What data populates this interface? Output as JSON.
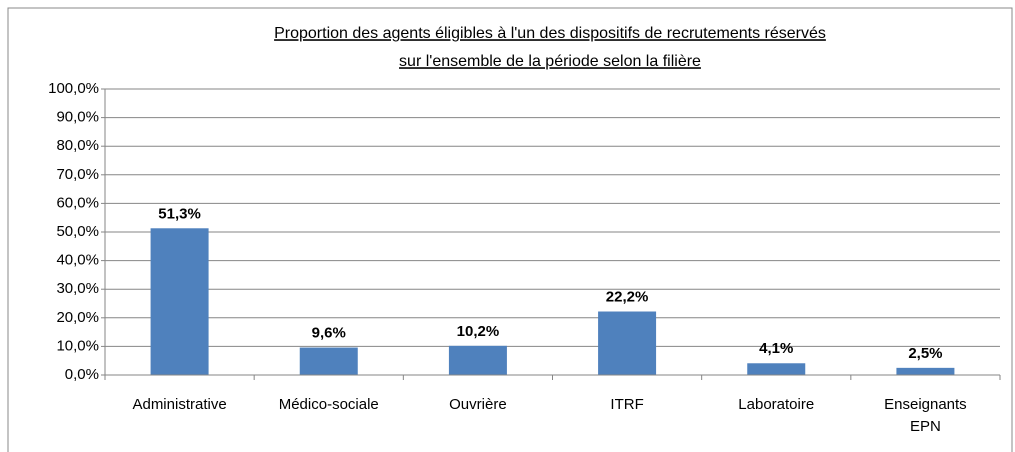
{
  "chart_data": {
    "type": "bar",
    "title": [
      "Proportion des agents éligibles à l'un des dispositifs de recrutements réservés",
      "sur l'ensemble de la période selon la filière"
    ],
    "categories": [
      "Administrative",
      "Médico-sociale",
      "Ouvrière",
      "ITRF",
      "Laboratoire",
      "Enseignants EPN"
    ],
    "values": [
      51.3,
      9.6,
      10.2,
      22.2,
      4.1,
      2.5
    ],
    "value_labels": [
      "51,3%",
      "9,6%",
      "10,2%",
      "22,2%",
      "4,1%",
      "2,5%"
    ],
    "color": "#4f81bd",
    "ylim": [
      0,
      100
    ],
    "yticks": [
      {
        "value": 0,
        "label": "0,0%"
      },
      {
        "value": 10,
        "label": "10,0%"
      },
      {
        "value": 20,
        "label": "20,0%"
      },
      {
        "value": 30,
        "label": "30,0%"
      },
      {
        "value": 40,
        "label": "40,0%"
      },
      {
        "value": 50,
        "label": "50,0%"
      },
      {
        "value": 60,
        "label": "60,0%"
      },
      {
        "value": 70,
        "label": "70,0%"
      },
      {
        "value": 80,
        "label": "80,0%"
      },
      {
        "value": 90,
        "label": "90,0%"
      },
      {
        "value": 100,
        "label": "100,0%"
      }
    ],
    "grid": true
  }
}
